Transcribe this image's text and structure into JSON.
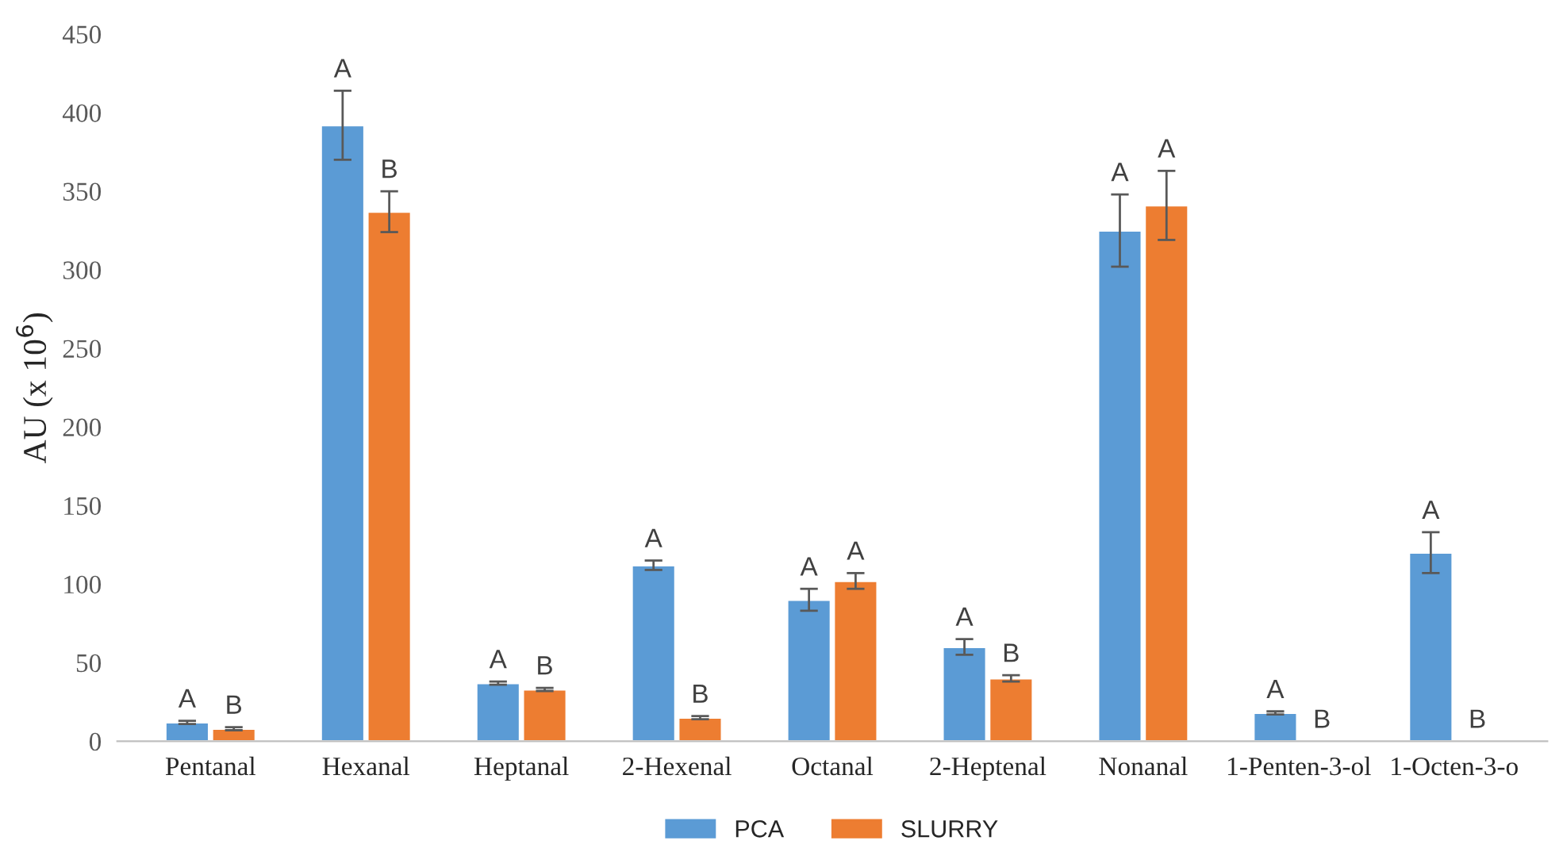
{
  "chart_data": {
    "type": "bar",
    "ylabel": "AU (x 10$^{6}$)",
    "categories": [
      "Pentanal",
      "Hexanal",
      "Heptanal",
      "2-Hexenal",
      "Octanal",
      "2-Heptenal",
      "Nonanal",
      "1-Penten-3-ol",
      "1-Octen-3-o"
    ],
    "series": [
      {
        "name": "PCA",
        "color": "#5b9bd5",
        "values": [
          12,
          392,
          37,
          112,
          90,
          60,
          325,
          18,
          120
        ],
        "errors": [
          1,
          22,
          1,
          3,
          7,
          5,
          23,
          1,
          13
        ],
        "value_labels": [
          "A",
          "A",
          "A",
          "A",
          "A",
          "A",
          "A",
          "A",
          "A"
        ]
      },
      {
        "name": "SLURRY",
        "color": "#ed7d31",
        "values": [
          8,
          337,
          33,
          15,
          102,
          40,
          341,
          null,
          null
        ],
        "errors": [
          1,
          13,
          1,
          1,
          5,
          2,
          22,
          null,
          null
        ],
        "value_labels": [
          "B",
          "B",
          "B",
          "B",
          "A",
          "B",
          "A",
          "B",
          "B"
        ]
      }
    ],
    "ylim": [
      0,
      450
    ],
    "yticks": [
      0,
      50,
      100,
      150,
      200,
      250,
      300,
      350,
      400,
      450
    ],
    "grid": false,
    "legend": "bottom"
  }
}
